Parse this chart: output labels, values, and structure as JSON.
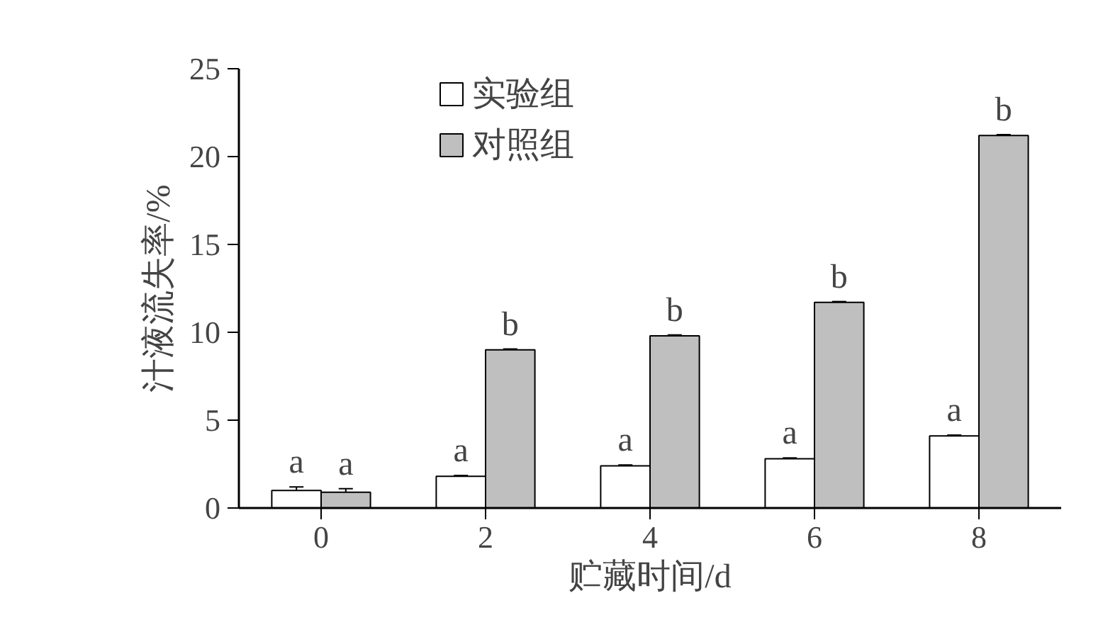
{
  "chart_data": {
    "type": "bar",
    "xlabel": "贮藏时间/d",
    "ylabel": "汁液流失率/%",
    "categories": [
      "0",
      "2",
      "4",
      "6",
      "8"
    ],
    "series": [
      {
        "name": "实验组",
        "color": "#ffffff",
        "values": [
          1.0,
          1.8,
          2.4,
          2.8,
          4.1
        ],
        "errors": [
          0.2,
          0.05,
          0.05,
          0.05,
          0.05
        ]
      },
      {
        "name": "对照组",
        "color": "#bfbfbf",
        "values": [
          0.9,
          9.0,
          9.8,
          11.7,
          21.2
        ],
        "errors": [
          0.2,
          0.05,
          0.05,
          0.05,
          0.05
        ]
      }
    ],
    "ylim": [
      0,
      25
    ],
    "yticks": [
      0,
      5,
      10,
      15,
      20,
      25
    ],
    "grid": false,
    "legend": "top",
    "annotations": [
      {
        "text": "a",
        "x": "0",
        "y": 1.0
      },
      {
        "text": "a",
        "x": "0",
        "y": 0.9
      },
      {
        "text": "a",
        "x": "2",
        "y": 1.8
      },
      {
        "text": "b",
        "x": "2",
        "y": 9.0
      },
      {
        "text": "a",
        "x": "4",
        "y": 2.4
      },
      {
        "text": "b",
        "x": "4",
        "y": 9.8
      },
      {
        "text": "a",
        "x": "6",
        "y": 2.8
      },
      {
        "text": "b",
        "x": "6",
        "y": 11.7
      },
      {
        "text": "a",
        "x": "8",
        "y": 4.1
      },
      {
        "text": "b",
        "x": "8",
        "y": 21.2
      }
    ]
  }
}
